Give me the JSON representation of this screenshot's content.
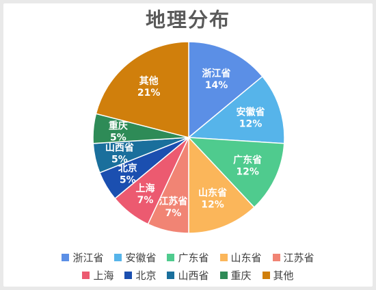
{
  "chart_data": {
    "type": "pie",
    "title": "地理分布",
    "slices": [
      {
        "label": "浙江省",
        "value": 14,
        "value_label": "14%",
        "color": "#5B8FE6"
      },
      {
        "label": "安徽省",
        "value": 12,
        "value_label": "12%",
        "color": "#56B4EA"
      },
      {
        "label": "广东省",
        "value": 12,
        "value_label": "12%",
        "color": "#4FCB8E"
      },
      {
        "label": "山东省",
        "value": 12,
        "value_label": "12%",
        "color": "#FBB65A"
      },
      {
        "label": "江苏省",
        "value": 7,
        "value_label": "7%",
        "color": "#F18474"
      },
      {
        "label": "上海",
        "value": 7,
        "value_label": "7%",
        "color": "#EC5A70"
      },
      {
        "label": "北京",
        "value": 5,
        "value_label": "5%",
        "color": "#1B4FB0"
      },
      {
        "label": "山西省",
        "value": 5,
        "value_label": "5%",
        "color": "#1A6F9C"
      },
      {
        "label": "重庆",
        "value": 5,
        "value_label": "5%",
        "color": "#2E8B57"
      },
      {
        "label": "其他",
        "value": 21,
        "value_label": "21%",
        "color": "#D07F0C"
      }
    ],
    "legend_position": "bottom",
    "start_angle": "12 o'clock, clockwise"
  }
}
